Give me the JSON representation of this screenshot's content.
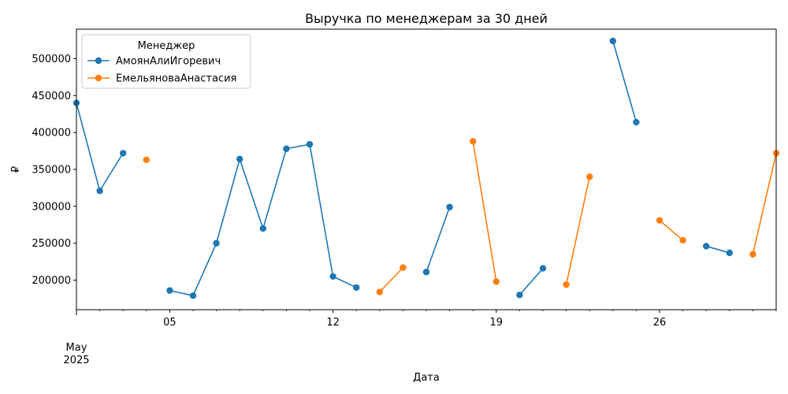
{
  "chart_data": {
    "type": "line",
    "title": "Выручка по менеджерам за 30 дней",
    "xlabel": "Дата",
    "ylabel": "₽",
    "x_range": [
      "2025-05-01",
      "2025-05-31"
    ],
    "y_range": [
      160000,
      540000
    ],
    "y_ticks": [
      200000,
      250000,
      300000,
      350000,
      400000,
      450000,
      500000
    ],
    "x_ticks": [
      {
        "date": "2025-05-05",
        "label": "05"
      },
      {
        "date": "2025-05-12",
        "label": "12"
      },
      {
        "date": "2025-05-19",
        "label": "19"
      },
      {
        "date": "2025-05-26",
        "label": "26"
      }
    ],
    "x_major": {
      "date": "2025-05-01",
      "label": "May",
      "sublabel": "2025"
    },
    "grid": false,
    "legend": {
      "title": "Менеджер",
      "placement": "top-left"
    },
    "series": [
      {
        "name": "АмоянАлиИгоревич",
        "color": "#1f77b4",
        "points": [
          {
            "date": "2025-05-01",
            "value": 440000
          },
          {
            "date": "2025-05-02",
            "value": 321000
          },
          {
            "date": "2025-05-03",
            "value": 372000
          },
          {
            "date": "2025-05-04",
            "value": null
          },
          {
            "date": "2025-05-05",
            "value": 186000
          },
          {
            "date": "2025-05-06",
            "value": 179000
          },
          {
            "date": "2025-05-07",
            "value": 250000
          },
          {
            "date": "2025-05-08",
            "value": 364000
          },
          {
            "date": "2025-05-09",
            "value": 270000
          },
          {
            "date": "2025-05-10",
            "value": 378000
          },
          {
            "date": "2025-05-11",
            "value": 384000
          },
          {
            "date": "2025-05-12",
            "value": 205000
          },
          {
            "date": "2025-05-13",
            "value": 190000
          },
          {
            "date": "2025-05-14",
            "value": null
          },
          {
            "date": "2025-05-15",
            "value": null
          },
          {
            "date": "2025-05-16",
            "value": 211000
          },
          {
            "date": "2025-05-17",
            "value": 299000
          },
          {
            "date": "2025-05-18",
            "value": null
          },
          {
            "date": "2025-05-19",
            "value": null
          },
          {
            "date": "2025-05-20",
            "value": 180000
          },
          {
            "date": "2025-05-21",
            "value": 216000
          },
          {
            "date": "2025-05-22",
            "value": null
          },
          {
            "date": "2025-05-23",
            "value": null
          },
          {
            "date": "2025-05-24",
            "value": 524000
          },
          {
            "date": "2025-05-25",
            "value": 414000
          },
          {
            "date": "2025-05-26",
            "value": null
          },
          {
            "date": "2025-05-27",
            "value": null
          },
          {
            "date": "2025-05-28",
            "value": 246000
          },
          {
            "date": "2025-05-29",
            "value": 237000
          }
        ]
      },
      {
        "name": "ЕмельяноваАнастасия",
        "color": "#ff7f0e",
        "points": [
          {
            "date": "2025-05-03",
            "value": null
          },
          {
            "date": "2025-05-04",
            "value": 363000
          },
          {
            "date": "2025-05-05",
            "value": null
          },
          {
            "date": "2025-05-13",
            "value": null
          },
          {
            "date": "2025-05-14",
            "value": 184000
          },
          {
            "date": "2025-05-15",
            "value": 217000
          },
          {
            "date": "2025-05-16",
            "value": null
          },
          {
            "date": "2025-05-17",
            "value": null
          },
          {
            "date": "2025-05-18",
            "value": 388000
          },
          {
            "date": "2025-05-19",
            "value": 198000
          },
          {
            "date": "2025-05-20",
            "value": null
          },
          {
            "date": "2025-05-21",
            "value": null
          },
          {
            "date": "2025-05-22",
            "value": 194000
          },
          {
            "date": "2025-05-23",
            "value": 340000
          },
          {
            "date": "2025-05-24",
            "value": null
          },
          {
            "date": "2025-05-25",
            "value": null
          },
          {
            "date": "2025-05-26",
            "value": 281000
          },
          {
            "date": "2025-05-27",
            "value": 254000
          },
          {
            "date": "2025-05-28",
            "value": null
          },
          {
            "date": "2025-05-29",
            "value": null
          },
          {
            "date": "2025-05-30",
            "value": 235000
          },
          {
            "date": "2025-05-31",
            "value": 372000
          }
        ]
      }
    ]
  }
}
